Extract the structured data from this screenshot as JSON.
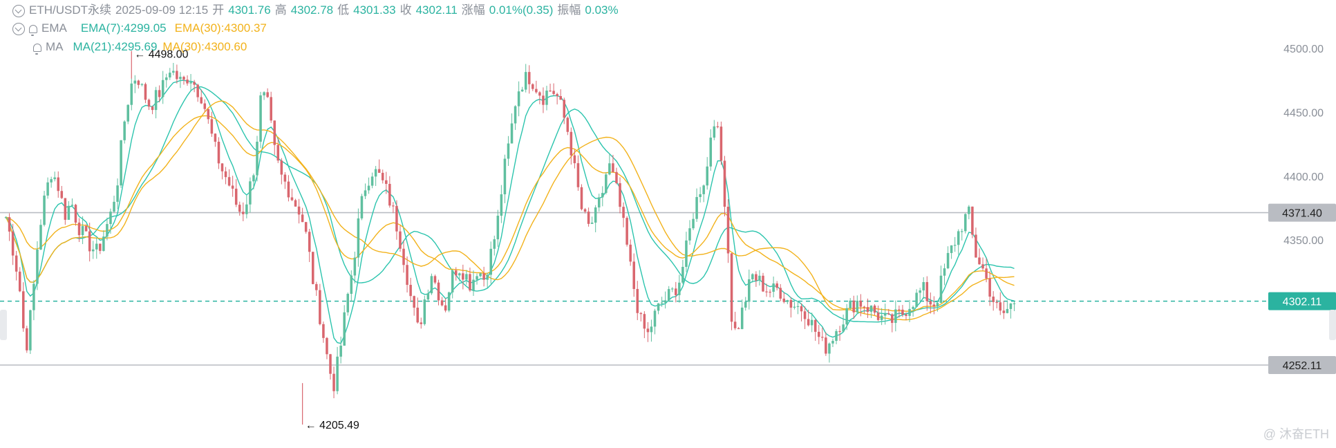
{
  "header": {
    "symbol": "ETH/USDT永续",
    "datetime": "2025-09-09 12:15",
    "open_label": "开",
    "open": "4301.76",
    "high_label": "高",
    "high": "4302.78",
    "low_label": "低",
    "low": "4301.33",
    "close_label": "收",
    "close": "4302.11",
    "change_label": "涨幅",
    "change": "0.01%(0.35)",
    "amp_label": "振幅",
    "amp": "0.03%"
  },
  "indicators": {
    "ema_name": "EMA",
    "ema7": "EMA(7):4299.05",
    "ema30": "EMA(30):4300.37",
    "ma_name": "MA",
    "ma21": "MA(21):4295.69",
    "ma30": "MA(30):4300.60"
  },
  "colors": {
    "up": "#2bb3a0",
    "down": "#e05865",
    "candle_up": "#5fbf9f",
    "candle_down": "#d9666e",
    "ema7": "#2bc4ad",
    "ema30": "#f2b21b",
    "ma21": "#2bc4ad",
    "ma30": "#f2b21b",
    "hline": "#b9bcc2",
    "price_tag": "#2bb3a0",
    "grey_tag": "#b9bcc2"
  },
  "annotations": {
    "high_marker": "← 4498.00",
    "low_marker": "← 4205.49"
  },
  "watermark": "@ 沐奋ETH",
  "chart_data": {
    "type": "candlestick",
    "title": "ETH/USDT永续",
    "y_ticks": [
      "4500.00",
      "4450.00",
      "4400.00",
      "4350.00"
    ],
    "ylim": [
      4195,
      4505
    ],
    "horizontal_lines": [
      {
        "value": 4371.4,
        "label": "4371.40",
        "style": "solid"
      },
      {
        "value": 4252.11,
        "label": "4252.11",
        "style": "solid"
      },
      {
        "value": 4302.11,
        "label": "4302.11",
        "style": "dashed"
      }
    ],
    "current_price": 4302.11,
    "swing_high": 4498.0,
    "swing_low": 4205.49,
    "close_path": [
      4368,
      4345,
      4318,
      4262,
      4300,
      4355,
      4385,
      4405,
      4392,
      4370,
      4380,
      4362,
      4352,
      4345,
      4340,
      4355,
      4370,
      4395,
      4440,
      4470,
      4480,
      4465,
      4455,
      4462,
      4470,
      4485,
      4478,
      4472,
      4480,
      4470,
      4462,
      4440,
      4420,
      4405,
      4395,
      4380,
      4370,
      4385,
      4410,
      4465,
      4455,
      4420,
      4400,
      4392,
      4380,
      4372,
      4350,
      4315,
      4290,
      4260,
      4235,
      4262,
      4300,
      4330,
      4370,
      4395,
      4405,
      4400,
      4390,
      4375,
      4355,
      4330,
      4300,
      4278,
      4305,
      4325,
      4310,
      4295,
      4320,
      4330,
      4325,
      4315,
      4328,
      4320,
      4338,
      4360,
      4402,
      4430,
      4465,
      4475,
      4478,
      4470,
      4462,
      4468,
      4465,
      4450,
      4432,
      4400,
      4372,
      4360,
      4368,
      4385,
      4410,
      4395,
      4370,
      4340,
      4310,
      4285,
      4275,
      4290,
      4300,
      4305,
      4310,
      4320,
      4345,
      4372,
      4390,
      4402,
      4450,
      4425,
      4370,
      4275,
      4285,
      4305,
      4322,
      4318,
      4312,
      4310,
      4312,
      4305,
      4300,
      4298,
      4295,
      4285,
      4275,
      4265,
      4272,
      4282,
      4290,
      4298,
      4302,
      4300,
      4296,
      4292,
      4288,
      4285,
      4290,
      4293,
      4300,
      4305,
      4312,
      4302,
      4300,
      4320,
      4338,
      4350,
      4362,
      4372,
      4340,
      4330,
      4315,
      4300,
      4290,
      4296,
      4302
    ]
  }
}
